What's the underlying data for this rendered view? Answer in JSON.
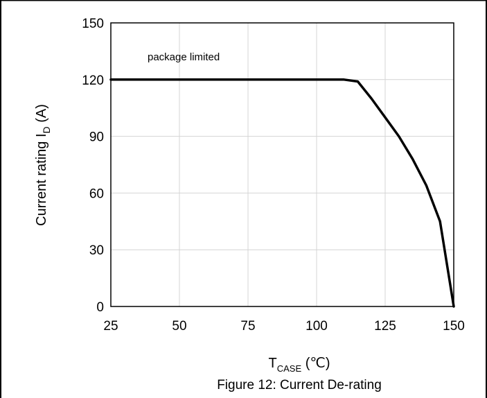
{
  "chart_data": {
    "type": "line",
    "title": "",
    "caption": "Figure 12: Current De-rating",
    "xlabel": {
      "main": "T",
      "sub": "CASE",
      "suffix": " (℃)"
    },
    "ylabel": {
      "main": "Current rating I",
      "sub": "D",
      "suffix": " (A)"
    },
    "xlim": [
      25,
      150
    ],
    "ylim": [
      0,
      150
    ],
    "xticks": [
      25,
      50,
      75,
      100,
      125,
      150
    ],
    "yticks": [
      0,
      30,
      60,
      90,
      120,
      150
    ],
    "grid": true,
    "annotation": "package limited",
    "series": [
      {
        "x": [
          25,
          110,
          115,
          120,
          125,
          130,
          135,
          140,
          145,
          150
        ],
        "y": [
          120,
          120,
          119,
          110,
          100,
          90,
          78,
          64,
          45,
          0
        ]
      }
    ]
  }
}
